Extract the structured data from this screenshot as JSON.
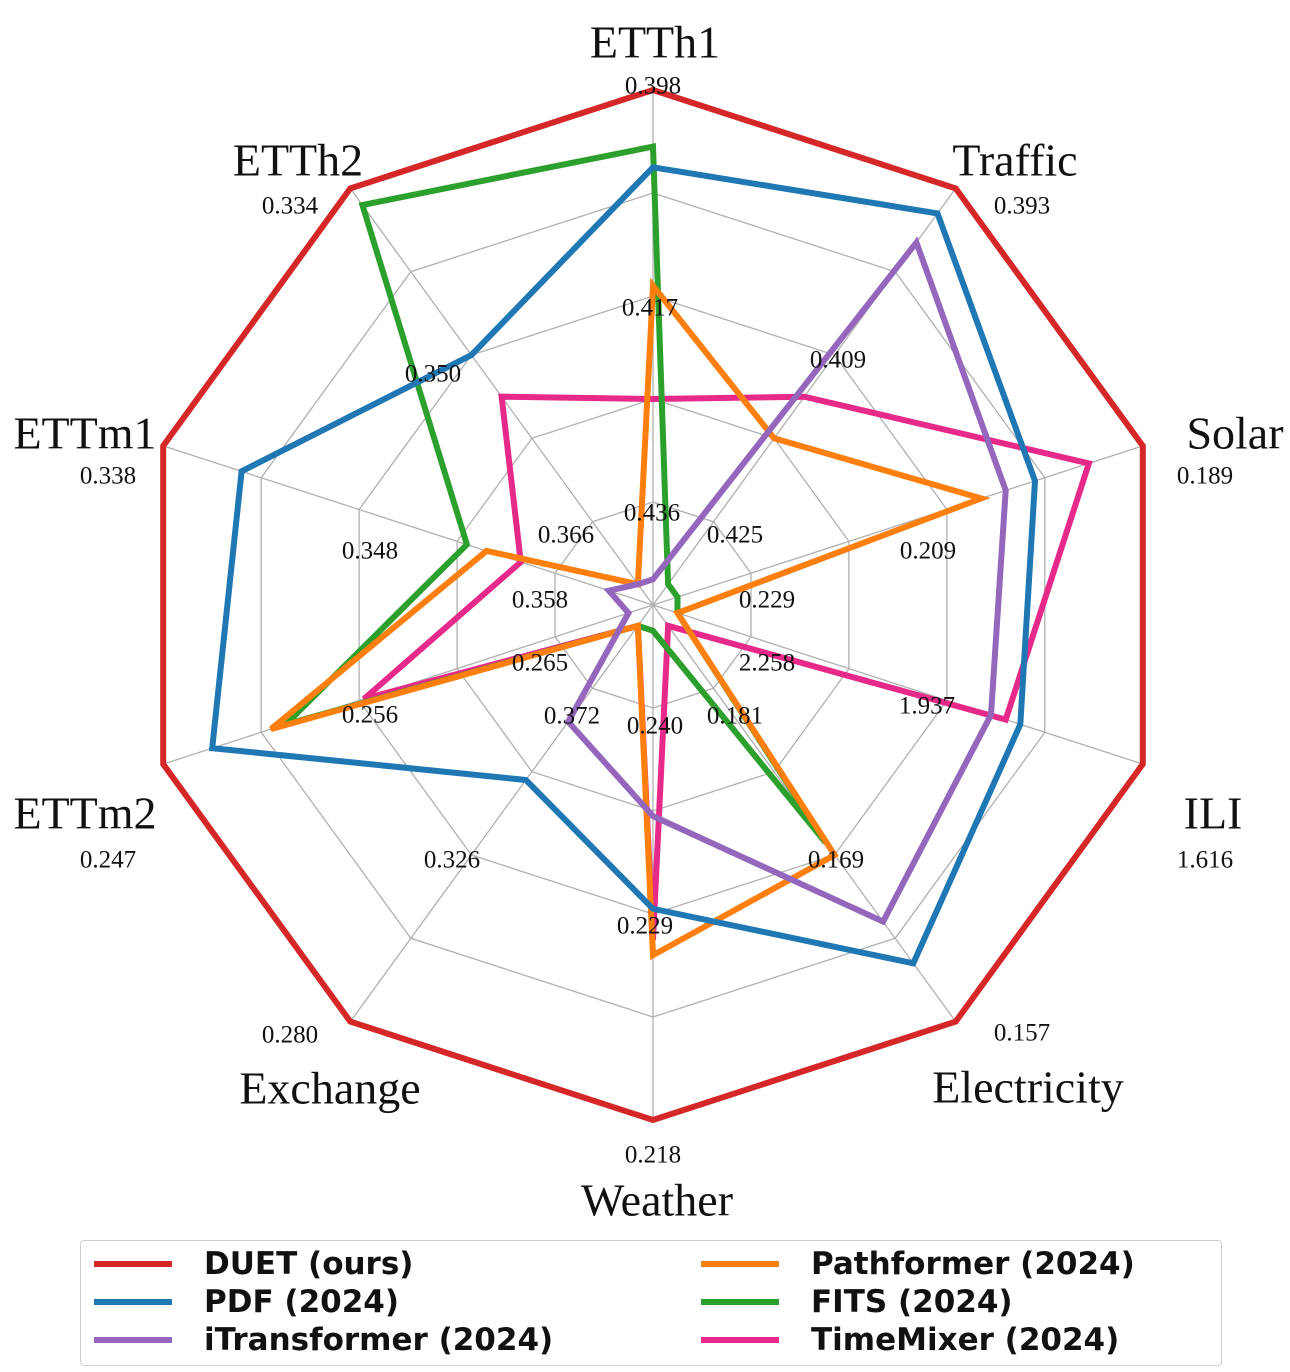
{
  "chart_data": {
    "type": "radar",
    "axes": [
      "ETTh1",
      "Traffic",
      "Solar",
      "ILI",
      "Electricity",
      "Weather",
      "Exchange",
      "ETTm2",
      "ETTm1",
      "ETTh2"
    ],
    "grid": true,
    "legend_position": "bottom",
    "outer_tick_labels": [
      "0.398",
      "0.393",
      "0.189",
      "1.616",
      "0.157",
      "0.218",
      "0.280",
      "0.247",
      "0.338",
      "0.334"
    ],
    "inner_tick_labels": [
      [
        "0.417",
        "0.436"
      ],
      [
        "0.409",
        "0.425"
      ],
      [
        "0.209",
        "0.229"
      ],
      [
        "1.937",
        "2.258"
      ],
      [
        "0.169",
        "0.181"
      ],
      [
        "0.229",
        "0.240"
      ],
      [
        "0.326",
        "0.372"
      ],
      [
        "0.256",
        "0.265"
      ],
      [
        "0.348",
        "0.358"
      ],
      [
        "0.350",
        "0.366"
      ]
    ],
    "radial_scale": {
      "min": 0,
      "max": 1,
      "rings": 5
    },
    "series": [
      {
        "name": "DUET (ours)",
        "color": "#d62728",
        "values": [
          1,
          1,
          1,
          1,
          1,
          1,
          1,
          1,
          1,
          1
        ]
      },
      {
        "name": "PDF (2024)",
        "color": "#1f77b4",
        "values": [
          0.85,
          0.94,
          0.78,
          0.75,
          0.86,
          0.59,
          0.42,
          0.9,
          0.84,
          0.6
        ]
      },
      {
        "name": "iTransformer (2024)",
        "color": "#9467bd",
        "values": [
          0.05,
          0.87,
          0.72,
          0.69,
          0.76,
          0.41,
          0.28,
          0.05,
          0.09,
          0.05
        ]
      },
      {
        "name": "Pathformer (2024)",
        "color": "#ff7f0e",
        "values": [
          0.62,
          0.4,
          0.67,
          0.05,
          0.6,
          0.68,
          0.05,
          0.78,
          0.34,
          0.05
        ]
      },
      {
        "name": "FITS (2024)",
        "color": "#2ca02c",
        "values": [
          0.89,
          0.05,
          0.05,
          0.05,
          0.57,
          0.05,
          0.05,
          0.75,
          0.38,
          0.96
        ]
      },
      {
        "name": "TimeMixer (2024)",
        "color": "#e7298a",
        "values": [
          0.4,
          0.5,
          0.89,
          0.72,
          0.05,
          0.65,
          0.05,
          0.59,
          0.27,
          0.5
        ]
      }
    ]
  }
}
